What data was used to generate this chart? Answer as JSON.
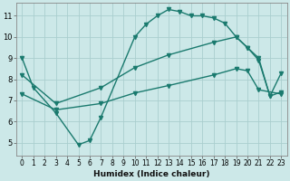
{
  "xlabel": "Humidex (Indice chaleur)",
  "background_color": "#cce8e8",
  "line_color": "#1a7a6e",
  "grid_color": "#aacece",
  "xlim": [
    -0.5,
    23.5
  ],
  "ylim": [
    4.4,
    11.6
  ],
  "xticks": [
    0,
    1,
    2,
    3,
    4,
    5,
    6,
    7,
    8,
    9,
    10,
    11,
    12,
    13,
    14,
    15,
    16,
    17,
    18,
    19,
    20,
    21,
    22,
    23
  ],
  "yticks": [
    5,
    6,
    7,
    8,
    9,
    10,
    11
  ],
  "line1_x": [
    0,
    1,
    3,
    5,
    6,
    7,
    10,
    11,
    12,
    13,
    14,
    15,
    16,
    17,
    18,
    19,
    20,
    21,
    22,
    23
  ],
  "line1_y": [
    9.0,
    7.6,
    6.4,
    4.9,
    5.1,
    6.2,
    10.0,
    10.6,
    11.0,
    11.3,
    11.2,
    11.0,
    11.0,
    10.9,
    10.65,
    10.0,
    9.5,
    8.9,
    7.2,
    8.3
  ],
  "line2_x": [
    0,
    3,
    7,
    10,
    13,
    17,
    19,
    20,
    21,
    22,
    23
  ],
  "line2_y": [
    8.2,
    6.85,
    7.6,
    8.55,
    9.15,
    9.75,
    10.0,
    9.5,
    9.0,
    7.2,
    7.4
  ],
  "line3_x": [
    0,
    3,
    7,
    10,
    13,
    17,
    19,
    20,
    21,
    23
  ],
  "line3_y": [
    7.3,
    6.55,
    6.85,
    7.35,
    7.7,
    8.2,
    8.5,
    8.4,
    7.5,
    7.3
  ],
  "markersize": 3,
  "linewidth": 1.0
}
